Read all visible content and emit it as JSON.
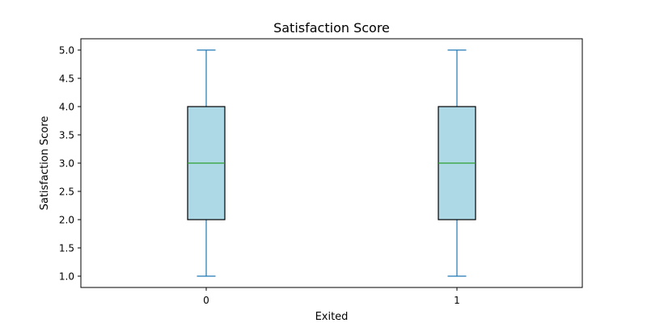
{
  "chart_data": {
    "type": "box",
    "title": "Satisfaction Score",
    "xlabel": "Exited",
    "ylabel": "Satisfaction Score",
    "categories": [
      "0",
      "1"
    ],
    "boxes": [
      {
        "category": "0",
        "whisker_low": 1.0,
        "q1": 2.0,
        "median": 3.0,
        "q3": 4.0,
        "whisker_high": 5.0
      },
      {
        "category": "1",
        "whisker_low": 1.0,
        "q1": 2.0,
        "median": 3.0,
        "q3": 4.0,
        "whisker_high": 5.0
      }
    ],
    "ylim": [
      0.8,
      5.2
    ],
    "yticks": [
      1.0,
      1.5,
      2.0,
      2.5,
      3.0,
      3.5,
      4.0,
      4.5,
      5.0
    ],
    "grid": false,
    "colors": {
      "box_fill": "#add8e6",
      "box_edge": "#000000",
      "whisker": "#1f77b4",
      "median": "#2ca02c"
    }
  }
}
